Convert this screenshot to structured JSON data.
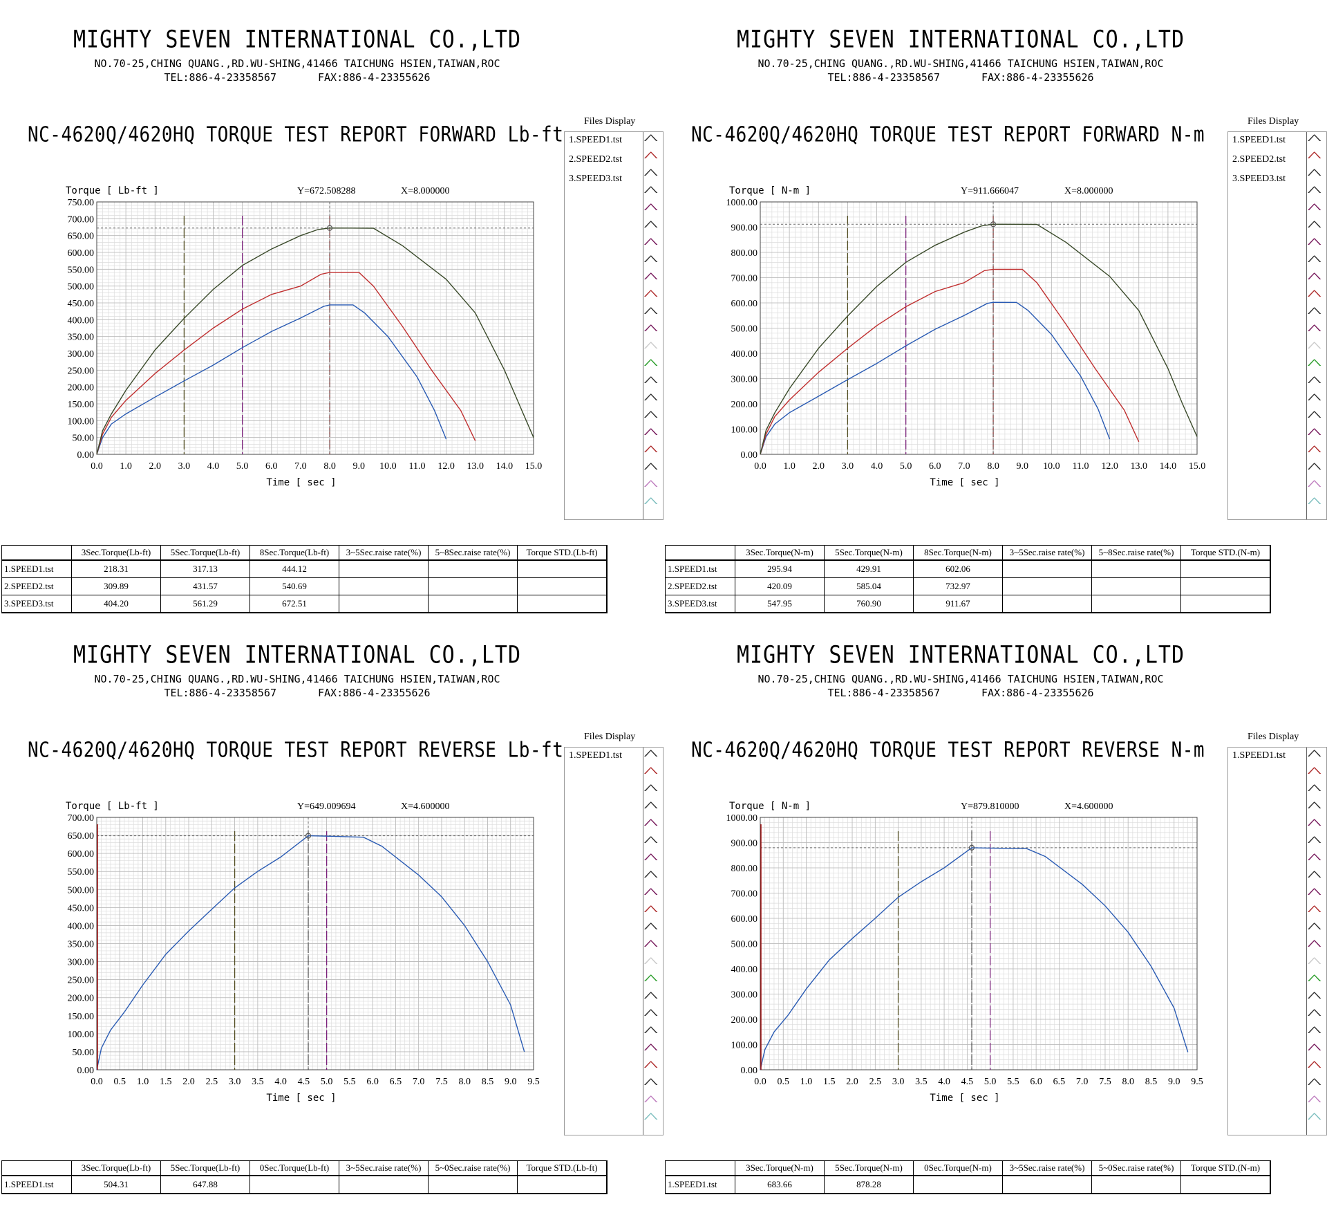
{
  "company": {
    "name": "MIGHTY SEVEN INTERNATIONAL CO.,LTD",
    "address": "NO.70-25,CHING QUANG.,RD.WU-SHING,41466 TAICHUNG HSIEN,TAIWAN,ROC",
    "tel": "TEL:886-4-23358567",
    "fax": "FAX:886-4-23355626"
  },
  "files_display_label": "Files Display",
  "axis_xlabel": "Time [ sec ]",
  "panels": [
    {
      "title": "NC-4620Q/4620HQ TORQUE TEST REPORT FORWARD Lb-ft",
      "ylabel": "Torque [ Lb-ft ]",
      "cursor_y": "Y=672.508288",
      "cursor_x": "X=8.000000",
      "files": [
        "1.SPEED1.tst",
        "2.SPEED2.tst",
        "3.SPEED3.tst"
      ],
      "table": {
        "headers": [
          "3Sec.Torque(Lb-ft)",
          "5Sec.Torque(Lb-ft)",
          "8Sec.Torque(Lb-ft)",
          "3~5Sec.raise rate(%)",
          "5~8Sec.raise rate(%)",
          "Torque STD.(Lb-ft)"
        ],
        "rows": [
          [
            "1.SPEED1.tst",
            "218.31",
            "317.13",
            "444.12",
            "",
            "",
            ""
          ],
          [
            "2.SPEED2.tst",
            "309.89",
            "431.57",
            "540.69",
            "",
            "",
            ""
          ],
          [
            "3.SPEED3.tst",
            "404.20",
            "561.29",
            "672.51",
            "",
            "",
            ""
          ]
        ]
      }
    },
    {
      "title": "NC-4620Q/4620HQ TORQUE TEST REPORT FORWARD N-m",
      "ylabel": "Torque [ N-m ]",
      "cursor_y": "Y=911.666047",
      "cursor_x": "X=8.000000",
      "files": [
        "1.SPEED1.tst",
        "2.SPEED2.tst",
        "3.SPEED3.tst"
      ],
      "table": {
        "headers": [
          "3Sec.Torque(N-m)",
          "5Sec.Torque(N-m)",
          "8Sec.Torque(N-m)",
          "3~5Sec.raise rate(%)",
          "5~8Sec.raise rate(%)",
          "Torque STD.(N-m)"
        ],
        "rows": [
          [
            "1.SPEED1.tst",
            "295.94",
            "429.91",
            "602.06",
            "",
            "",
            ""
          ],
          [
            "2.SPEED2.tst",
            "420.09",
            "585.04",
            "732.97",
            "",
            "",
            ""
          ],
          [
            "3.SPEED3.tst",
            "547.95",
            "760.90",
            "911.67",
            "",
            "",
            ""
          ]
        ]
      }
    },
    {
      "title": "NC-4620Q/4620HQ TORQUE TEST REPORT REVERSE Lb-ft",
      "ylabel": "Torque [ Lb-ft ]",
      "cursor_y": "Y=649.009694",
      "cursor_x": "X=4.600000",
      "files": [
        "1.SPEED1.tst"
      ],
      "table": {
        "headers": [
          "3Sec.Torque(Lb-ft)",
          "5Sec.Torque(Lb-ft)",
          "0Sec.Torque(Lb-ft)",
          "3~5Sec.raise rate(%)",
          "5~0Sec.raise rate(%)",
          "Torque STD.(Lb-ft)"
        ],
        "rows": [
          [
            "1.SPEED1.tst",
            "504.31",
            "647.88",
            "",
            "",
            "",
            ""
          ]
        ]
      }
    },
    {
      "title": "NC-4620Q/4620HQ TORQUE TEST REPORT REVERSE N-m",
      "ylabel": "Torque [ N-m ]",
      "cursor_y": "Y=879.810000",
      "cursor_x": "X=4.600000",
      "files": [
        "1.SPEED1.tst"
      ],
      "table": {
        "headers": [
          "3Sec.Torque(N-m)",
          "5Sec.Torque(N-m)",
          "0Sec.Torque(N-m)",
          "3~5Sec.raise rate(%)",
          "5~0Sec.raise rate(%)",
          "Torque STD.(N-m)"
        ],
        "rows": [
          [
            "1.SPEED1.tst",
            "683.66",
            "878.28",
            "",
            "",
            "",
            ""
          ]
        ]
      }
    }
  ],
  "chart_data": [
    {
      "type": "line",
      "title": "NC-4620Q/4620HQ TORQUE TEST REPORT FORWARD Lb-ft",
      "xlabel": "Time [ sec ]",
      "ylabel": "Torque [ Lb-ft ]",
      "xlim": [
        0,
        15
      ],
      "ylim": [
        0,
        750
      ],
      "xticks": [
        0,
        1,
        2,
        3,
        4,
        5,
        6,
        7,
        8,
        9,
        10,
        11,
        12,
        13,
        14,
        15
      ],
      "yticks": [
        0,
        50,
        100,
        150,
        200,
        250,
        300,
        350,
        400,
        450,
        500,
        550,
        600,
        650,
        700,
        750
      ],
      "ytick_decimals": 2,
      "xtick_decimals": 1,
      "grid": true,
      "markers_x": [
        {
          "x": 3,
          "color": "#4f4a1e"
        },
        {
          "x": 5,
          "color": "#7a1f7a"
        },
        {
          "x": 8,
          "color": "#8a3a3a"
        }
      ],
      "cursor": {
        "x": 8.0,
        "y": 672.508288
      },
      "series": [
        {
          "name": "1.SPEED1.tst",
          "color": "#2a5bb3",
          "points": [
            [
              0,
              0
            ],
            [
              0.2,
              50
            ],
            [
              0.5,
              90
            ],
            [
              1,
              120
            ],
            [
              2,
              170
            ],
            [
              3,
              218.31
            ],
            [
              4,
              265
            ],
            [
              5,
              317.13
            ],
            [
              6,
              365
            ],
            [
              7,
              405
            ],
            [
              7.8,
              440
            ],
            [
              8,
              444.12
            ],
            [
              8.8,
              444
            ],
            [
              9.2,
              420
            ],
            [
              10,
              350
            ],
            [
              11,
              230
            ],
            [
              11.6,
              130
            ],
            [
              12,
              45
            ]
          ]
        },
        {
          "name": "2.SPEED2.tst",
          "color": "#c03030",
          "points": [
            [
              0,
              0
            ],
            [
              0.2,
              60
            ],
            [
              0.5,
              110
            ],
            [
              1,
              160
            ],
            [
              2,
              240
            ],
            [
              3,
              309.89
            ],
            [
              4,
              375
            ],
            [
              5,
              431.57
            ],
            [
              6,
              475
            ],
            [
              7,
              500
            ],
            [
              7.7,
              535
            ],
            [
              8,
              540.69
            ],
            [
              9,
              541
            ],
            [
              9.5,
              500
            ],
            [
              10.5,
              380
            ],
            [
              11.5,
              250
            ],
            [
              12.5,
              130
            ],
            [
              13,
              40
            ]
          ]
        },
        {
          "name": "3.SPEED3.tst",
          "color": "#3a4a2a",
          "points": [
            [
              0,
              0
            ],
            [
              0.2,
              70
            ],
            [
              0.5,
              120
            ],
            [
              1,
              190
            ],
            [
              2,
              310
            ],
            [
              3,
              404.2
            ],
            [
              4,
              490
            ],
            [
              5,
              561.29
            ],
            [
              6,
              610
            ],
            [
              7,
              650
            ],
            [
              7.6,
              668
            ],
            [
              8,
              672.51
            ],
            [
              9.5,
              672
            ],
            [
              10.5,
              620
            ],
            [
              12,
              520
            ],
            [
              13,
              420
            ],
            [
              14,
              250
            ],
            [
              14.5,
              150
            ],
            [
              15,
              50
            ]
          ]
        }
      ]
    },
    {
      "type": "line",
      "title": "NC-4620Q/4620HQ TORQUE TEST REPORT FORWARD N-m",
      "xlabel": "Time [ sec ]",
      "ylabel": "Torque [ N-m ]",
      "xlim": [
        0,
        15
      ],
      "ylim": [
        0,
        1000
      ],
      "xticks": [
        0,
        1,
        2,
        3,
        4,
        5,
        6,
        7,
        8,
        9,
        10,
        11,
        12,
        13,
        14,
        15
      ],
      "yticks": [
        0,
        100,
        200,
        300,
        400,
        500,
        600,
        700,
        800,
        900,
        1000
      ],
      "ytick_decimals": 2,
      "xtick_decimals": 1,
      "grid": true,
      "markers_x": [
        {
          "x": 3,
          "color": "#4f4a1e"
        },
        {
          "x": 5,
          "color": "#7a1f7a"
        },
        {
          "x": 8,
          "color": "#8a3a3a"
        }
      ],
      "cursor": {
        "x": 8.0,
        "y": 911.666047
      },
      "series": [
        {
          "name": "1.SPEED1.tst",
          "color": "#2a5bb3",
          "points": [
            [
              0,
              0
            ],
            [
              0.2,
              70
            ],
            [
              0.5,
              120
            ],
            [
              1,
              165
            ],
            [
              2,
              230
            ],
            [
              3,
              295.94
            ],
            [
              4,
              360
            ],
            [
              5,
              429.91
            ],
            [
              6,
              495
            ],
            [
              7,
              550
            ],
            [
              7.8,
              598
            ],
            [
              8,
              602.06
            ],
            [
              8.8,
              602
            ],
            [
              9.2,
              570
            ],
            [
              10,
              475
            ],
            [
              11,
              310
            ],
            [
              11.6,
              180
            ],
            [
              12,
              60
            ]
          ]
        },
        {
          "name": "2.SPEED2.tst",
          "color": "#c03030",
          "points": [
            [
              0,
              0
            ],
            [
              0.2,
              80
            ],
            [
              0.5,
              150
            ],
            [
              1,
              215
            ],
            [
              2,
              325
            ],
            [
              3,
              420.09
            ],
            [
              4,
              510
            ],
            [
              5,
              585.04
            ],
            [
              6,
              645
            ],
            [
              7,
              680
            ],
            [
              7.7,
              728
            ],
            [
              8,
              732.97
            ],
            [
              9,
              733
            ],
            [
              9.5,
              680
            ],
            [
              10.5,
              515
            ],
            [
              11.5,
              340
            ],
            [
              12.5,
              175
            ],
            [
              13,
              50
            ]
          ]
        },
        {
          "name": "3.SPEED3.tst",
          "color": "#3a4a2a",
          "points": [
            [
              0,
              0
            ],
            [
              0.2,
              95
            ],
            [
              0.5,
              165
            ],
            [
              1,
              260
            ],
            [
              2,
              420
            ],
            [
              3,
              547.95
            ],
            [
              4,
              665
            ],
            [
              5,
              760.9
            ],
            [
              6,
              828
            ],
            [
              7,
              880
            ],
            [
              7.6,
              905
            ],
            [
              8,
              911.67
            ],
            [
              9.5,
              911
            ],
            [
              10.5,
              840
            ],
            [
              12,
              705
            ],
            [
              13,
              570
            ],
            [
              14,
              340
            ],
            [
              14.5,
              200
            ],
            [
              15,
              70
            ]
          ]
        }
      ]
    },
    {
      "type": "line",
      "title": "NC-4620Q/4620HQ TORQUE TEST REPORT REVERSE Lb-ft",
      "xlabel": "Time [ sec ]",
      "ylabel": "Torque [ Lb-ft ]",
      "xlim": [
        0,
        9.5
      ],
      "ylim": [
        0,
        700
      ],
      "xticks": [
        0,
        0.5,
        1,
        1.5,
        2,
        2.5,
        3,
        3.5,
        4,
        4.5,
        5,
        5.5,
        6,
        6.5,
        7,
        7.5,
        8,
        8.5,
        9,
        9.5
      ],
      "yticks": [
        0,
        50,
        100,
        150,
        200,
        250,
        300,
        350,
        400,
        450,
        500,
        550,
        600,
        650,
        700
      ],
      "ytick_decimals": 2,
      "xtick_decimals": 1,
      "grid": true,
      "markers_x": [
        {
          "x": 3,
          "color": "#4f4a1e"
        },
        {
          "x": 5,
          "color": "#7a1f7a"
        },
        {
          "x": 4.6,
          "color": "#555555"
        }
      ],
      "cursor": {
        "x": 4.6,
        "y": 649.009694
      },
      "series": [
        {
          "name": "1.SPEED1.tst",
          "color": "#2a5bb3",
          "points": [
            [
              0,
              0
            ],
            [
              0.1,
              60
            ],
            [
              0.3,
              110
            ],
            [
              0.6,
              160
            ],
            [
              1,
              235
            ],
            [
              1.5,
              320
            ],
            [
              2,
              385
            ],
            [
              2.5,
              445
            ],
            [
              3,
              504.31
            ],
            [
              3.5,
              550
            ],
            [
              4,
              590
            ],
            [
              4.6,
              649
            ],
            [
              5,
              647.88
            ],
            [
              5.8,
              645
            ],
            [
              6.2,
              620
            ],
            [
              7,
              540
            ],
            [
              7.5,
              480
            ],
            [
              8,
              400
            ],
            [
              8.5,
              300
            ],
            [
              9,
              180
            ],
            [
              9.3,
              50
            ]
          ]
        }
      ]
    },
    {
      "type": "line",
      "title": "NC-4620Q/4620HQ TORQUE TEST REPORT REVERSE N-m",
      "xlabel": "Time [ sec ]",
      "ylabel": "Torque [ N-m ]",
      "xlim": [
        0,
        9.5
      ],
      "ylim": [
        0,
        1000
      ],
      "xticks": [
        0,
        0.5,
        1,
        1.5,
        2,
        2.5,
        3,
        3.5,
        4,
        4.5,
        5,
        5.5,
        6,
        6.5,
        7,
        7.5,
        8,
        8.5,
        9,
        9.5
      ],
      "yticks": [
        0,
        100,
        200,
        300,
        400,
        500,
        600,
        700,
        800,
        900,
        1000
      ],
      "ytick_decimals": 2,
      "xtick_decimals": 1,
      "grid": true,
      "markers_x": [
        {
          "x": 3,
          "color": "#4f4a1e"
        },
        {
          "x": 5,
          "color": "#7a1f7a"
        },
        {
          "x": 4.6,
          "color": "#555555"
        }
      ],
      "cursor": {
        "x": 4.6,
        "y": 879.81
      },
      "series": [
        {
          "name": "1.SPEED1.tst",
          "color": "#2a5bb3",
          "points": [
            [
              0,
              0
            ],
            [
              0.1,
              80
            ],
            [
              0.3,
              150
            ],
            [
              0.6,
              215
            ],
            [
              1,
              320
            ],
            [
              1.5,
              435
            ],
            [
              2,
              520
            ],
            [
              2.5,
              600
            ],
            [
              3,
              683.66
            ],
            [
              3.5,
              745
            ],
            [
              4,
              800
            ],
            [
              4.6,
              879.81
            ],
            [
              5,
              878.28
            ],
            [
              5.8,
              876
            ],
            [
              6.2,
              845
            ],
            [
              7,
              735
            ],
            [
              7.5,
              650
            ],
            [
              8,
              545
            ],
            [
              8.5,
              410
            ],
            [
              9,
              245
            ],
            [
              9.3,
              70
            ]
          ]
        }
      ]
    }
  ]
}
